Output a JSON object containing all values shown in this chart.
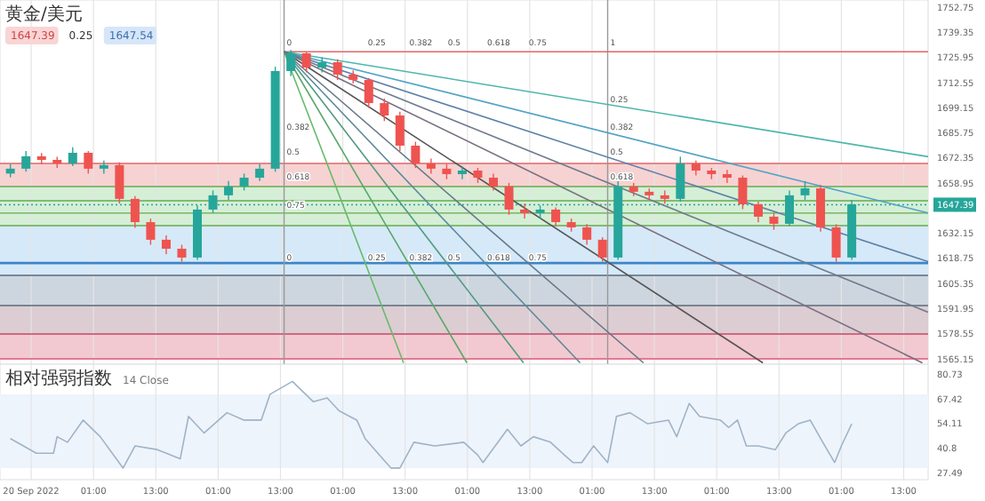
{
  "chart_data": [
    {
      "type": "candlestick",
      "title": "黄金/美元",
      "annotations": [
        "1647.39",
        "0.25",
        "1647.54",
        {
          "text": "0",
          "x": "2022-09-22T13:42",
          "y": 1731
        },
        {
          "text": "0.25",
          "x": "2022-09-23T05:18",
          "y": 1731
        },
        {
          "text": "0.382",
          "x": "2022-09-23T13:18",
          "y": 1731
        },
        {
          "text": "0.5",
          "x": "2022-09-23T20:42",
          "y": 1731
        },
        {
          "text": "0.618",
          "x": "2022-09-24T04:18",
          "y": 1731
        },
        {
          "text": "0.75",
          "x": "2022-09-24T12:18",
          "y": 1731
        },
        {
          "text": "1",
          "x": "2022-09-25T04:00",
          "y": 1731
        },
        {
          "text": "0.25",
          "x": "2022-09-25T04:00",
          "y": 1700.8
        },
        {
          "text": "0.382",
          "x": "2022-09-25T04:00",
          "y": 1685.9
        },
        {
          "text": "0.5",
          "x": "2022-09-25T04:00",
          "y": 1672.6
        },
        {
          "text": "0.618",
          "x": "2022-09-25T04:00",
          "y": 1659.4
        },
        {
          "text": "0.382",
          "x": "2022-09-22T13:42",
          "y": 1685.9
        },
        {
          "text": "0.5",
          "x": "2022-09-22T13:42",
          "y": 1672.6
        },
        {
          "text": "0.618",
          "x": "2022-09-22T13:42",
          "y": 1659.4
        },
        {
          "text": "0.75",
          "x": "2022-09-22T13:42",
          "y": 1644.5
        },
        {
          "text": "0",
          "x": "2022-09-22T13:42",
          "y": 1616.3
        },
        {
          "text": "0.25",
          "x": "2022-09-23T05:18",
          "y": 1616.3
        },
        {
          "text": "0.382",
          "x": "2022-09-23T13:18",
          "y": 1616.3
        },
        {
          "text": "0.5",
          "x": "2022-09-23T20:42",
          "y": 1616.3
        },
        {
          "text": "0.618",
          "x": "2022-09-24T04:18",
          "y": 1616.3
        },
        {
          "text": "0.75",
          "x": "2022-09-24T12:18",
          "y": 1616.3
        }
      ],
      "x": [
        "2022-09-20T09:00",
        "2022-09-20T12:00",
        "2022-09-20T15:00",
        "2022-09-20T18:00",
        "2022-09-20T21:00",
        "2022-09-21T00:00",
        "2022-09-21T03:00",
        "2022-09-21T06:00",
        "2022-09-21T09:00",
        "2022-09-21T12:00",
        "2022-09-21T15:00",
        "2022-09-21T18:00",
        "2022-09-21T21:00",
        "2022-09-22T00:00",
        "2022-09-22T03:00",
        "2022-09-22T06:00",
        "2022-09-22T09:00",
        "2022-09-22T12:00",
        "2022-09-22T15:00",
        "2022-09-22T18:00",
        "2022-09-22T21:00",
        "2022-09-23T00:00",
        "2022-09-23T03:00",
        "2022-09-23T06:00",
        "2022-09-23T09:00",
        "2022-09-23T12:00",
        "2022-09-23T15:00",
        "2022-09-23T18:00",
        "2022-09-23T21:00",
        "2022-09-24T00:00",
        "2022-09-24T03:00",
        "2022-09-24T06:00",
        "2022-09-24T09:00",
        "2022-09-24T12:00",
        "2022-09-24T15:00",
        "2022-09-24T18:00",
        "2022-09-24T21:00",
        "2022-09-25T00:00",
        "2022-09-25T03:00",
        "2022-09-25T06:00",
        "2022-09-25T09:00",
        "2022-09-25T12:00",
        "2022-09-25T15:00",
        "2022-09-25T18:00",
        "2022-09-25T21:00",
        "2022-09-26T00:00",
        "2022-09-26T03:00",
        "2022-09-26T06:00",
        "2022-09-26T09:00",
        "2022-09-26T12:00",
        "2022-09-26T15:00",
        "2022-09-26T18:00",
        "2022-09-26T21:00",
        "2022-09-27T00:00",
        "2022-09-27T03:00"
      ],
      "ohlc": [
        [
          1664.0,
          1669,
          1662,
          1666.6
        ],
        [
          1666.6,
          1676,
          1665,
          1673.2
        ],
        [
          1673.2,
          1675,
          1669,
          1671.3
        ],
        [
          1671.3,
          1673,
          1667,
          1669.4
        ],
        [
          1669.4,
          1678,
          1668,
          1675.1
        ],
        [
          1675.1,
          1676,
          1664,
          1666.6
        ],
        [
          1666.6,
          1671,
          1664,
          1668.5
        ],
        [
          1668.5,
          1670,
          1648,
          1650.5
        ],
        [
          1650.5,
          1652,
          1635,
          1638.1
        ],
        [
          1638.1,
          1640,
          1626,
          1628.7
        ],
        [
          1628.7,
          1631,
          1621,
          1623.9
        ],
        [
          1623.9,
          1626,
          1617,
          1619.2
        ],
        [
          1619.2,
          1647,
          1618,
          1644.8
        ],
        [
          1644.8,
          1655,
          1643,
          1652.4
        ],
        [
          1652.4,
          1660,
          1650,
          1657.1
        ],
        [
          1657.1,
          1664,
          1655,
          1661.8
        ],
        [
          1661.8,
          1669,
          1660,
          1666.6
        ],
        [
          1666.6,
          1721,
          1665,
          1718.7
        ],
        [
          1718.7,
          1730,
          1716,
          1728.2
        ],
        [
          1728.2,
          1729,
          1718,
          1720.6
        ],
        [
          1720.6,
          1726,
          1718,
          1723.4
        ],
        [
          1723.4,
          1725,
          1714,
          1716.8
        ],
        [
          1716.8,
          1719,
          1712,
          1714.0
        ],
        [
          1714.0,
          1715,
          1699,
          1701.6
        ],
        [
          1701.6,
          1704,
          1692,
          1695.0
        ],
        [
          1695.0,
          1697,
          1676,
          1678.9
        ],
        [
          1678.9,
          1681,
          1667,
          1669.4
        ],
        [
          1669.4,
          1672,
          1664,
          1666.6
        ],
        [
          1666.6,
          1669,
          1661,
          1663.7
        ],
        [
          1663.7,
          1668,
          1661,
          1665.6
        ],
        [
          1665.6,
          1667,
          1659,
          1661.8
        ],
        [
          1661.8,
          1664,
          1655,
          1657.1
        ],
        [
          1657.1,
          1659,
          1642,
          1644.8
        ],
        [
          1644.8,
          1648,
          1640,
          1642.9
        ],
        [
          1642.9,
          1647,
          1640,
          1644.8
        ],
        [
          1644.8,
          1646,
          1636,
          1638.1
        ],
        [
          1638.1,
          1640,
          1633,
          1635.3
        ],
        [
          1635.3,
          1637,
          1626,
          1628.7
        ],
        [
          1628.7,
          1630,
          1617,
          1619.2
        ],
        [
          1619.2,
          1660,
          1618,
          1657.1
        ],
        [
          1657.1,
          1659,
          1652,
          1654.3
        ],
        [
          1654.3,
          1656,
          1650,
          1652.4
        ],
        [
          1652.4,
          1655,
          1648,
          1650.5
        ],
        [
          1650.5,
          1673,
          1649,
          1669.4
        ],
        [
          1669.4,
          1671,
          1663,
          1665.6
        ],
        [
          1665.6,
          1667,
          1661,
          1663.7
        ],
        [
          1663.7,
          1666,
          1659,
          1661.8
        ],
        [
          1661.8,
          1663,
          1645,
          1647.6
        ],
        [
          1647.6,
          1649,
          1638,
          1641.0
        ],
        [
          1641.0,
          1643,
          1634,
          1637.2
        ],
        [
          1637.2,
          1655,
          1636,
          1652.4
        ],
        [
          1652.4,
          1660,
          1650,
          1656.1
        ],
        [
          1656.1,
          1658,
          1633,
          1635.3
        ],
        [
          1635.3,
          1637,
          1617,
          1619.2
        ],
        [
          1619.2,
          1650,
          1618,
          1647.6
        ]
      ],
      "series": [
        {
          "type": "line",
          "color": "#e06666",
          "x": [
            "2022-09-22T13:42",
            "2022-09-27T17:42"
          ],
          "values": [
            1729,
            1729
          ]
        },
        {
          "type": "line",
          "color": "#4db6ac",
          "x": [
            "2022-09-22T13:42",
            "2022-09-27T17:42"
          ],
          "values": [
            1729,
            1673
          ]
        },
        {
          "type": "line",
          "color": "#4fa3c7",
          "x": [
            "2022-09-22T13:42",
            "2022-09-27T17:42"
          ],
          "values": [
            1729,
            1643
          ]
        },
        {
          "type": "line",
          "color": "#5c7fa8",
          "x": [
            "2022-09-22T13:42",
            "2022-09-27T17:42"
          ],
          "values": [
            1729,
            1617
          ]
        },
        {
          "type": "line",
          "color": "#6d7b8c",
          "x": [
            "2022-09-22T13:42",
            "2022-09-27T17:42"
          ],
          "values": [
            1729,
            1590
          ]
        },
        {
          "type": "line",
          "color": "#7a6f80",
          "x": [
            "2022-09-22T13:42",
            "2022-09-27T16:36"
          ],
          "values": [
            1729,
            1563
          ]
        },
        {
          "type": "line",
          "color": "#555555",
          "x": [
            "2022-09-22T13:42",
            "2022-09-26T09:54"
          ],
          "values": [
            1729,
            1563
          ]
        },
        {
          "type": "line",
          "color": "#66bb6a",
          "x": [
            "2022-09-22T13:42",
            "2022-09-23T12:42"
          ],
          "values": [
            1729,
            1563
          ]
        },
        {
          "type": "line",
          "color": "#5aa86a",
          "x": [
            "2022-09-22T13:42",
            "2022-09-24T00:54"
          ],
          "values": [
            1729,
            1563
          ]
        },
        {
          "type": "line",
          "color": "#4f9a80",
          "x": [
            "2022-09-22T13:42",
            "2022-09-24T11:48"
          ],
          "values": [
            1729,
            1563
          ]
        },
        {
          "type": "line",
          "color": "#5b8a9a",
          "x": [
            "2022-09-22T13:42",
            "2022-09-24T22:42"
          ],
          "values": [
            1729,
            1563
          ]
        },
        {
          "type": "line",
          "color": "#667788",
          "x": [
            "2022-09-22T13:42",
            "2022-09-25T10:54"
          ],
          "values": [
            1729,
            1563
          ]
        }
      ],
      "bands": [
        {
          "axis": "y",
          "from": 1657.1,
          "to": 1669.4,
          "color": "#f7d2d2"
        },
        {
          "axis": "y",
          "from": 1636.2,
          "to": 1657.1,
          "color": "#d4efd6"
        },
        {
          "axis": "y",
          "from": 1609.7,
          "to": 1636.2,
          "color": "#d6e9f8"
        },
        {
          "axis": "y",
          "from": 1593.6,
          "to": 1609.7,
          "color": "#cdd6df"
        },
        {
          "axis": "y",
          "from": 1578.4,
          "to": 1593.6,
          "color": "#dccdd2"
        },
        {
          "axis": "y",
          "from": 1565.15,
          "to": 1578.4,
          "color": "#f2c9d0"
        }
      ],
      "ref_lines": [
        {
          "axis": "y",
          "value": 1669.4,
          "color": "#e06666"
        },
        {
          "axis": "y",
          "value": 1657.1,
          "color": "#6aa84f"
        },
        {
          "axis": "y",
          "value": 1649.5,
          "color": "#6aa84f"
        },
        {
          "axis": "y",
          "value": 1642.9,
          "color": "#6aa84f"
        },
        {
          "axis": "y",
          "value": 1636.2,
          "color": "#6aa84f"
        },
        {
          "axis": "y",
          "value": 1616.3,
          "color": "#3d85c6"
        },
        {
          "axis": "y",
          "value": 1609.7,
          "color": "#5a6a7a"
        },
        {
          "axis": "y",
          "value": 1593.6,
          "color": "#5a6a7a"
        },
        {
          "axis": "y",
          "value": 1578.4,
          "color": "#cc4466"
        },
        {
          "axis": "y",
          "value": 1565.15,
          "color": "#e0557a"
        },
        {
          "axis": "x",
          "value": "2022-09-22T13:42",
          "color": "#999999"
        },
        {
          "axis": "x",
          "value": "2022-09-25T04:00",
          "color": "#999999"
        },
        {
          "axis": "y",
          "value": 1647.39,
          "color": "#26a69a",
          "line_style": "dotted",
          "label": "1647.39"
        }
      ],
      "xlim": [
        "2022-09-20T07:00",
        "2022-09-27T17:42"
      ],
      "ylim": [
        1562.3,
        1756.6
      ],
      "xticks": [
        {
          "value": "2022-09-20T13:00",
          "label": null
        },
        {
          "value": "2022-09-21T01:00",
          "label": null
        },
        {
          "value": "2022-09-21T13:00",
          "label": null
        },
        {
          "value": "2022-09-22T01:00",
          "label": null
        },
        {
          "value": "2022-09-22T13:00",
          "label": null
        },
        {
          "value": "2022-09-23T01:00",
          "label": null
        },
        {
          "value": "2022-09-23T13:00",
          "label": null
        },
        {
          "value": "2022-09-24T01:00",
          "label": null
        },
        {
          "value": "2022-09-24T13:00",
          "label": null
        },
        {
          "value": "2022-09-25T01:00",
          "label": null
        },
        {
          "value": "2022-09-25T13:00",
          "label": null
        },
        {
          "value": "2022-09-26T01:00",
          "label": null
        },
        {
          "value": "2022-09-26T13:00",
          "label": null
        },
        {
          "value": "2022-09-27T01:00",
          "label": null
        },
        {
          "value": "2022-09-27T13:00",
          "label": null
        }
      ],
      "yticks": [
        1565.15,
        1578.55,
        1591.95,
        1605.35,
        1618.75,
        1632.15,
        1645.55,
        1658.95,
        1672.35,
        1685.75,
        1699.15,
        1712.55,
        1725.95,
        1739.35,
        1752.75
      ],
      "grid": "x",
      "tick_labels": "y"
    },
    {
      "type": "line",
      "title": "相对强弱指数",
      "subtitle": "14 Close",
      "series": [
        {
          "color": "#9fb3c8",
          "x": [
            "2022-09-20T09:00",
            "2022-09-20T14:00",
            "2022-09-20T17:18",
            "2022-09-20T18:00",
            "2022-09-20T20:00",
            "2022-09-20T23:00",
            "2022-09-21T02:18",
            "2022-09-21T06:42",
            "2022-09-21T09:00",
            "2022-09-21T13:18",
            "2022-09-21T17:42",
            "2022-09-21T19:18",
            "2022-09-21T22:18",
            "2022-09-22T02:42",
            "2022-09-22T06:00",
            "2022-09-22T09:18",
            "2022-09-22T11:00",
            "2022-09-22T15:18",
            "2022-09-22T19:18",
            "2022-09-22T22:00",
            "2022-09-23T00:18",
            "2022-09-23T03:42",
            "2022-09-23T05:18",
            "2022-09-23T08:42",
            "2022-09-23T10:18",
            "2022-09-23T12:00",
            "2022-09-23T14:42",
            "2022-09-23T18:42",
            "2022-09-24T00:18",
            "2022-09-24T03:00",
            "2022-09-24T04:00",
            "2022-09-24T08:42",
            "2022-09-24T11:18",
            "2022-09-24T13:42",
            "2022-09-24T17:00",
            "2022-09-24T19:42",
            "2022-09-24T21:18",
            "2022-09-24T23:00",
            "2022-09-25T01:18",
            "2022-09-25T04:00",
            "2022-09-25T05:42",
            "2022-09-25T08:18",
            "2022-09-25T11:42",
            "2022-09-25T15:42",
            "2022-09-25T17:18",
            "2022-09-25T19:42",
            "2022-09-25T21:42",
            "2022-09-26T01:42",
            "2022-09-26T03:18",
            "2022-09-26T05:00",
            "2022-09-26T06:42",
            "2022-09-26T09:00",
            "2022-09-26T12:18",
            "2022-09-26T14:18",
            "2022-09-26T16:42",
            "2022-09-26T19:00",
            "2022-09-26T21:00",
            "2022-09-26T23:42",
            "2022-09-27T01:00",
            "2022-09-27T03:00"
          ],
          "values": [
            46,
            38,
            38,
            47,
            44,
            56,
            47,
            30,
            42,
            40,
            35,
            58,
            49,
            60,
            56,
            56,
            70,
            77,
            66,
            68,
            61,
            56,
            46,
            35,
            30,
            30,
            44,
            42,
            44,
            37,
            33,
            51,
            42,
            47,
            44,
            37,
            33,
            33,
            42,
            33,
            58,
            60,
            54,
            56,
            47,
            65,
            58,
            56,
            52,
            56,
            42,
            42,
            40,
            49,
            54,
            56,
            46,
            33,
            42,
            54
          ]
        }
      ],
      "bands": [
        {
          "axis": "y",
          "from": 30,
          "to": 70,
          "color": "#eef4fb"
        }
      ],
      "xlim": [
        "2022-09-20T07:00",
        "2022-09-27T17:42"
      ],
      "ylim": [
        23.7,
        86.3
      ],
      "xticks": [
        {
          "value": "2022-09-20T13:00",
          "label": "20 Sep 2022"
        },
        {
          "value": "2022-09-21T01:00",
          "label": "01:00"
        },
        {
          "value": "2022-09-21T13:00",
          "label": "13:00"
        },
        {
          "value": "2022-09-22T01:00",
          "label": "01:00"
        },
        {
          "value": "2022-09-22T13:00",
          "label": "13:00"
        },
        {
          "value": "2022-09-23T01:00",
          "label": "01:00"
        },
        {
          "value": "2022-09-23T13:00",
          "label": "13:00"
        },
        {
          "value": "2022-09-24T01:00",
          "label": "01:00"
        },
        {
          "value": "2022-09-24T13:00",
          "label": "13:00"
        },
        {
          "value": "2022-09-25T01:00",
          "label": "01:00"
        },
        {
          "value": "2022-09-25T13:00",
          "label": "13:00"
        },
        {
          "value": "2022-09-26T01:00",
          "label": "01:00"
        },
        {
          "value": "2022-09-26T13:00",
          "label": "13:00"
        },
        {
          "value": "2022-09-27T01:00",
          "label": "01:00"
        },
        {
          "value": "2022-09-27T13:00",
          "label": "13:00"
        }
      ],
      "yticks": [
        27.49,
        40.8,
        54.11,
        67.42,
        80.73
      ],
      "grid": "x"
    }
  ]
}
